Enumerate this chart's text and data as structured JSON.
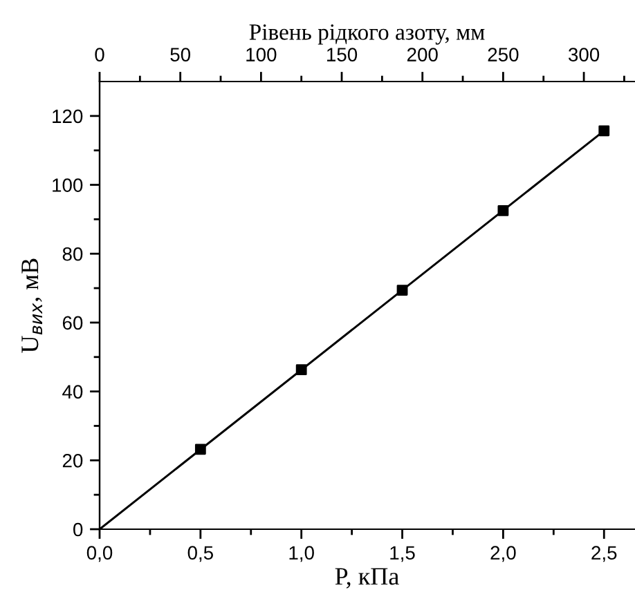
{
  "chart_data": {
    "type": "scatter",
    "xlabel": "P, кПа",
    "ylabel": "U$_{вих}$, мВ",
    "x2label": "Рівень рідкого азоту, мм",
    "series": [
      {
        "x": [
          0.5,
          1.0,
          1.5,
          2.0,
          2.5
        ],
        "values": [
          23.2,
          46.3,
          69.4,
          92.5,
          115.7
        ],
        "color": "#000000",
        "marker": "square"
      },
      {
        "type": "line",
        "x": [
          0,
          2.5
        ],
        "values": [
          0,
          115.7
        ],
        "color": "#000000",
        "marker": "none",
        "line_style": "solid"
      }
    ],
    "xlim": [
      0,
      2.65
    ],
    "ylim": [
      0,
      130
    ],
    "x2lim": [
      0,
      331.25
    ],
    "xticks": [
      {
        "value": 0,
        "label": "0,0"
      },
      {
        "value": 0.25,
        "label": null
      },
      {
        "value": 0.5,
        "label": "0,5"
      },
      {
        "value": 0.75,
        "label": null
      },
      {
        "value": 1.0,
        "label": "1,0"
      },
      {
        "value": 1.25,
        "label": null
      },
      {
        "value": 1.5,
        "label": "1,5"
      },
      {
        "value": 1.75,
        "label": null
      },
      {
        "value": 2.0,
        "label": "2,0"
      },
      {
        "value": 2.25,
        "label": null
      },
      {
        "value": 2.5,
        "label": "2,5"
      }
    ],
    "yticks": [
      0,
      {
        "value": 10,
        "label": null
      },
      20,
      {
        "value": 30,
        "label": null
      },
      40,
      {
        "value": 50,
        "label": null
      },
      60,
      {
        "value": 70,
        "label": null
      },
      80,
      {
        "value": 90,
        "label": null
      },
      100,
      {
        "value": 110,
        "label": null
      },
      120
    ],
    "x2ticks": [
      0,
      {
        "value": 25,
        "label": null
      },
      50,
      {
        "value": 75,
        "label": null
      },
      100,
      {
        "value": 125,
        "label": null
      },
      150,
      {
        "value": 175,
        "label": null
      },
      200,
      {
        "value": 225,
        "label": null
      },
      250,
      {
        "value": 275,
        "label": null
      },
      300,
      {
        "value": 325,
        "label": null
      }
    ],
    "grid": false,
    "legend": false
  }
}
